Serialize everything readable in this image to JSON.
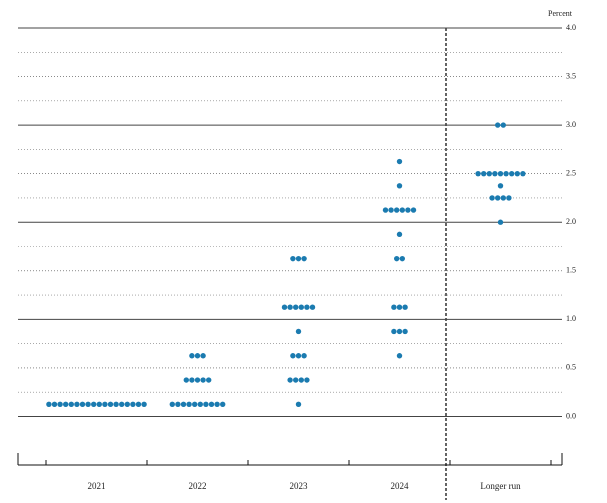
{
  "chart_data": {
    "type": "dot",
    "y_label": "Percent",
    "categories": [
      "2021",
      "2022",
      "2023",
      "2024",
      "Longer run"
    ],
    "values": [
      [
        0.125,
        0.125,
        0.125,
        0.125,
        0.125,
        0.125,
        0.125,
        0.125,
        0.125,
        0.125,
        0.125,
        0.125,
        0.125,
        0.125,
        0.125,
        0.125,
        0.125,
        0.125
      ],
      [
        0.125,
        0.125,
        0.125,
        0.125,
        0.125,
        0.125,
        0.125,
        0.125,
        0.125,
        0.125,
        0.375,
        0.375,
        0.375,
        0.375,
        0.375,
        0.625,
        0.625,
        0.625
      ],
      [
        0.125,
        0.375,
        0.375,
        0.375,
        0.375,
        0.625,
        0.625,
        0.625,
        0.875,
        1.125,
        1.125,
        1.125,
        1.125,
        1.125,
        1.125,
        1.625,
        1.625,
        1.625
      ],
      [
        0.625,
        0.875,
        0.875,
        0.875,
        1.125,
        1.125,
        1.125,
        1.625,
        1.625,
        1.875,
        2.125,
        2.125,
        2.125,
        2.125,
        2.125,
        2.125,
        2.375,
        2.625
      ],
      [
        2.0,
        2.25,
        2.25,
        2.25,
        2.25,
        2.375,
        2.5,
        2.5,
        2.5,
        2.5,
        2.5,
        2.5,
        2.5,
        2.5,
        2.5,
        3.0,
        3.0
      ]
    ],
    "color": "#1b7bb0",
    "ylim": [
      -0.5,
      4.0
    ],
    "yticks": [
      {
        "value": 0,
        "label": "0.0"
      },
      {
        "value": 0.5,
        "label": "0.5"
      },
      {
        "value": 1,
        "label": "1.0"
      },
      {
        "value": 1.5,
        "label": "1.5"
      },
      {
        "value": 2,
        "label": "2.0"
      },
      {
        "value": 2.5,
        "label": "2.5"
      },
      {
        "value": 3,
        "label": "3.0"
      },
      {
        "value": 3.5,
        "label": "3.5"
      },
      {
        "value": 4,
        "label": "4.0"
      }
    ],
    "minor_yticks": [
      0.25,
      0.75,
      1.25,
      1.75,
      2.25,
      2.75,
      3.25,
      3.75
    ],
    "grid": true
  }
}
